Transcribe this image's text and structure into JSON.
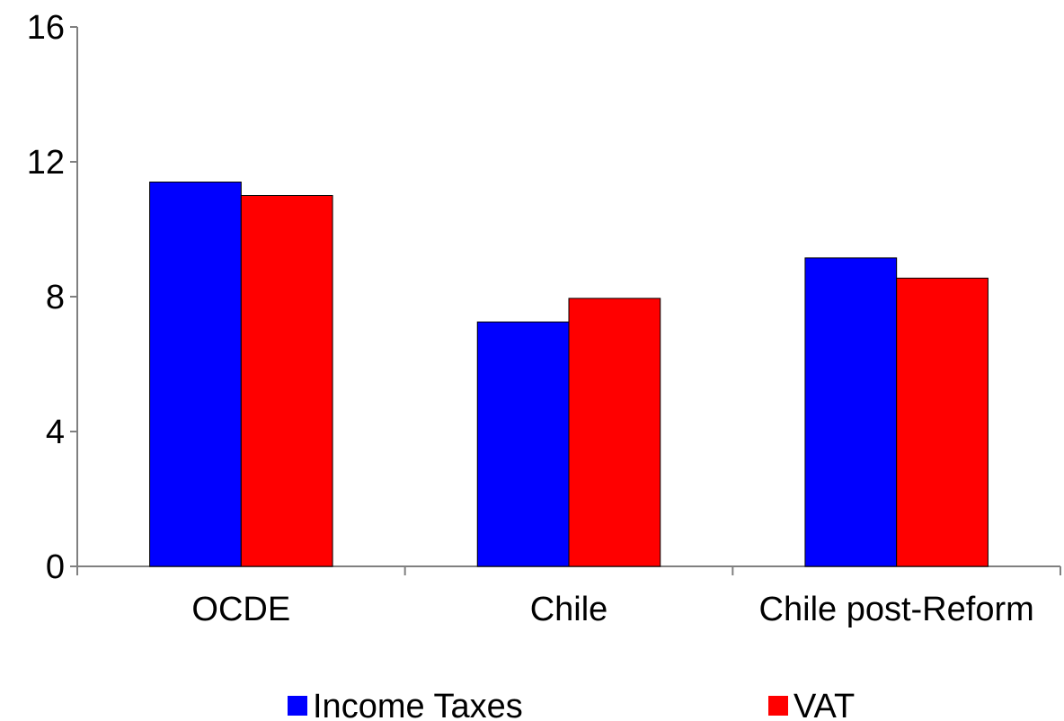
{
  "chart_data": {
    "type": "bar",
    "categories": [
      "OCDE",
      "Chile",
      "Chile post-Reform"
    ],
    "series": [
      {
        "name": "Income Taxes",
        "color": "#0000ff",
        "values": [
          11.4,
          7.25,
          9.15
        ]
      },
      {
        "name": "VAT",
        "color": "#ff0000",
        "values": [
          11.0,
          7.95,
          8.55
        ]
      }
    ],
    "title": "",
    "xlabel": "",
    "ylabel": "",
    "ylim": [
      0,
      16
    ],
    "yticks": [
      0,
      4,
      8,
      12,
      16
    ],
    "ytick_labels": [
      "0",
      "4",
      "8",
      "12",
      "16"
    ],
    "grid": false,
    "legend_position": "bottom"
  }
}
